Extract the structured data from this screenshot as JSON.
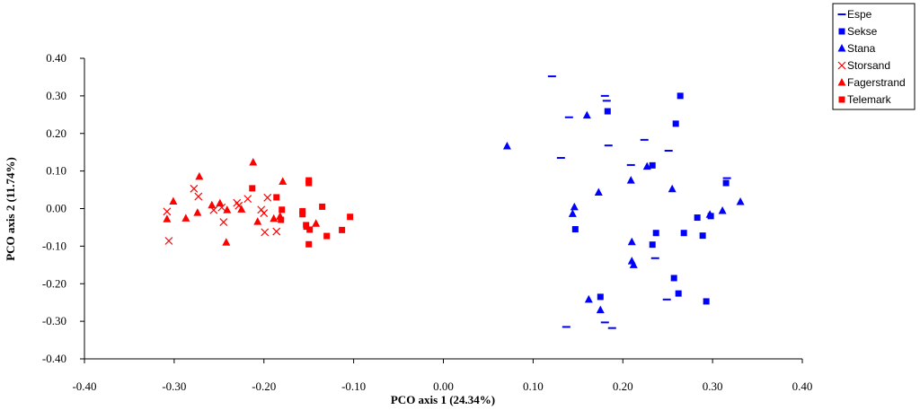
{
  "chart_data": {
    "type": "scatter",
    "title": "",
    "xlabel": "PCO axis 1 (24.34%)",
    "ylabel": "PCO axis 2 (11.74%)",
    "xlim": [
      -0.4,
      0.4
    ],
    "ylim": [
      -0.4,
      0.4
    ],
    "x_ticks": [
      "-0.40",
      "-0.30",
      "-0.20",
      "-0.10",
      "0.00",
      "0.10",
      "0.20",
      "0.30",
      "0.40"
    ],
    "y_ticks": [
      "0.40",
      "0.30",
      "0.20",
      "0.10",
      "0.00",
      "-0.10",
      "-0.20",
      "-0.30",
      "-0.40"
    ],
    "grid": false,
    "legend_position": "top-right",
    "series": [
      {
        "name": "Espe",
        "color": "#0000ff",
        "marker": "dash",
        "points": [
          [
            0.121,
            0.352
          ],
          [
            0.14,
            0.243
          ],
          [
            0.18,
            0.3
          ],
          [
            0.182,
            0.287
          ],
          [
            0.184,
            0.168
          ],
          [
            0.131,
            0.135
          ],
          [
            0.224,
            0.183
          ],
          [
            0.251,
            0.154
          ],
          [
            0.209,
            0.116
          ],
          [
            0.316,
            0.081
          ],
          [
            0.236,
            -0.132
          ],
          [
            0.249,
            -0.242
          ],
          [
            0.137,
            -0.315
          ],
          [
            0.18,
            -0.303
          ],
          [
            0.188,
            -0.318
          ]
        ]
      },
      {
        "name": "Sekse",
        "color": "#0000ff",
        "marker": "square",
        "points": [
          [
            0.264,
            0.3
          ],
          [
            0.183,
            0.259
          ],
          [
            0.259,
            0.226
          ],
          [
            0.233,
            0.115
          ],
          [
            0.315,
            0.068
          ],
          [
            0.283,
            -0.024
          ],
          [
            0.298,
            -0.02
          ],
          [
            0.147,
            -0.055
          ],
          [
            0.237,
            -0.065
          ],
          [
            0.268,
            -0.065
          ],
          [
            0.289,
            -0.072
          ],
          [
            0.233,
            -0.096
          ],
          [
            0.257,
            -0.185
          ],
          [
            0.262,
            -0.226
          ],
          [
            0.175,
            -0.235
          ],
          [
            0.293,
            -0.247
          ]
        ]
      },
      {
        "name": "Stana",
        "color": "#0000ff",
        "marker": "triangle",
        "points": [
          [
            0.071,
            0.166
          ],
          [
            0.16,
            0.248
          ],
          [
            0.227,
            0.112
          ],
          [
            0.209,
            0.075
          ],
          [
            0.173,
            0.043
          ],
          [
            0.255,
            0.052
          ],
          [
            0.146,
            0.004
          ],
          [
            0.144,
            -0.014
          ],
          [
            0.331,
            0.018
          ],
          [
            0.311,
            -0.006
          ],
          [
            0.297,
            -0.016
          ],
          [
            0.21,
            -0.089
          ],
          [
            0.21,
            -0.14
          ],
          [
            0.212,
            -0.15
          ],
          [
            0.162,
            -0.242
          ],
          [
            0.175,
            -0.27
          ]
        ]
      },
      {
        "name": "Storsand",
        "color": "#ff0000",
        "marker": "x",
        "points": [
          [
            -0.308,
            -0.008
          ],
          [
            -0.306,
            -0.086
          ],
          [
            -0.278,
            0.053
          ],
          [
            -0.273,
            0.032
          ],
          [
            -0.247,
            0.003
          ],
          [
            -0.256,
            -0.004
          ],
          [
            -0.245,
            -0.036
          ],
          [
            -0.23,
            0.015
          ],
          [
            -0.228,
            0.008
          ],
          [
            -0.218,
            0.026
          ],
          [
            -0.203,
            -0.003
          ],
          [
            -0.2,
            -0.012
          ],
          [
            -0.196,
            0.029
          ],
          [
            -0.199,
            -0.063
          ],
          [
            -0.186,
            -0.061
          ]
        ]
      },
      {
        "name": "Fagerstrand",
        "color": "#ff0000",
        "marker": "triangle",
        "points": [
          [
            -0.272,
            0.085
          ],
          [
            -0.301,
            0.019
          ],
          [
            -0.308,
            -0.028
          ],
          [
            -0.287,
            -0.026
          ],
          [
            -0.274,
            -0.011
          ],
          [
            -0.258,
            0.009
          ],
          [
            -0.249,
            0.014
          ],
          [
            -0.241,
            -0.004
          ],
          [
            -0.225,
            -0.002
          ],
          [
            -0.212,
            0.123
          ],
          [
            -0.179,
            0.072
          ],
          [
            -0.207,
            -0.035
          ],
          [
            -0.189,
            -0.027
          ],
          [
            -0.182,
            -0.021
          ],
          [
            -0.242,
            -0.09
          ],
          [
            -0.152,
            -0.048
          ],
          [
            -0.142,
            -0.04
          ]
        ]
      },
      {
        "name": "Telemark",
        "color": "#ff0000",
        "marker": "square",
        "points": [
          [
            -0.213,
            0.054
          ],
          [
            -0.186,
            0.03
          ],
          [
            -0.15,
            0.075
          ],
          [
            -0.15,
            0.068
          ],
          [
            -0.135,
            0.005
          ],
          [
            -0.18,
            -0.003
          ],
          [
            -0.157,
            -0.007
          ],
          [
            -0.157,
            -0.015
          ],
          [
            -0.181,
            -0.03
          ],
          [
            -0.153,
            -0.044
          ],
          [
            -0.149,
            -0.056
          ],
          [
            -0.104,
            -0.022
          ],
          [
            -0.113,
            -0.057
          ],
          [
            -0.13,
            -0.073
          ],
          [
            -0.15,
            -0.095
          ]
        ]
      }
    ]
  }
}
